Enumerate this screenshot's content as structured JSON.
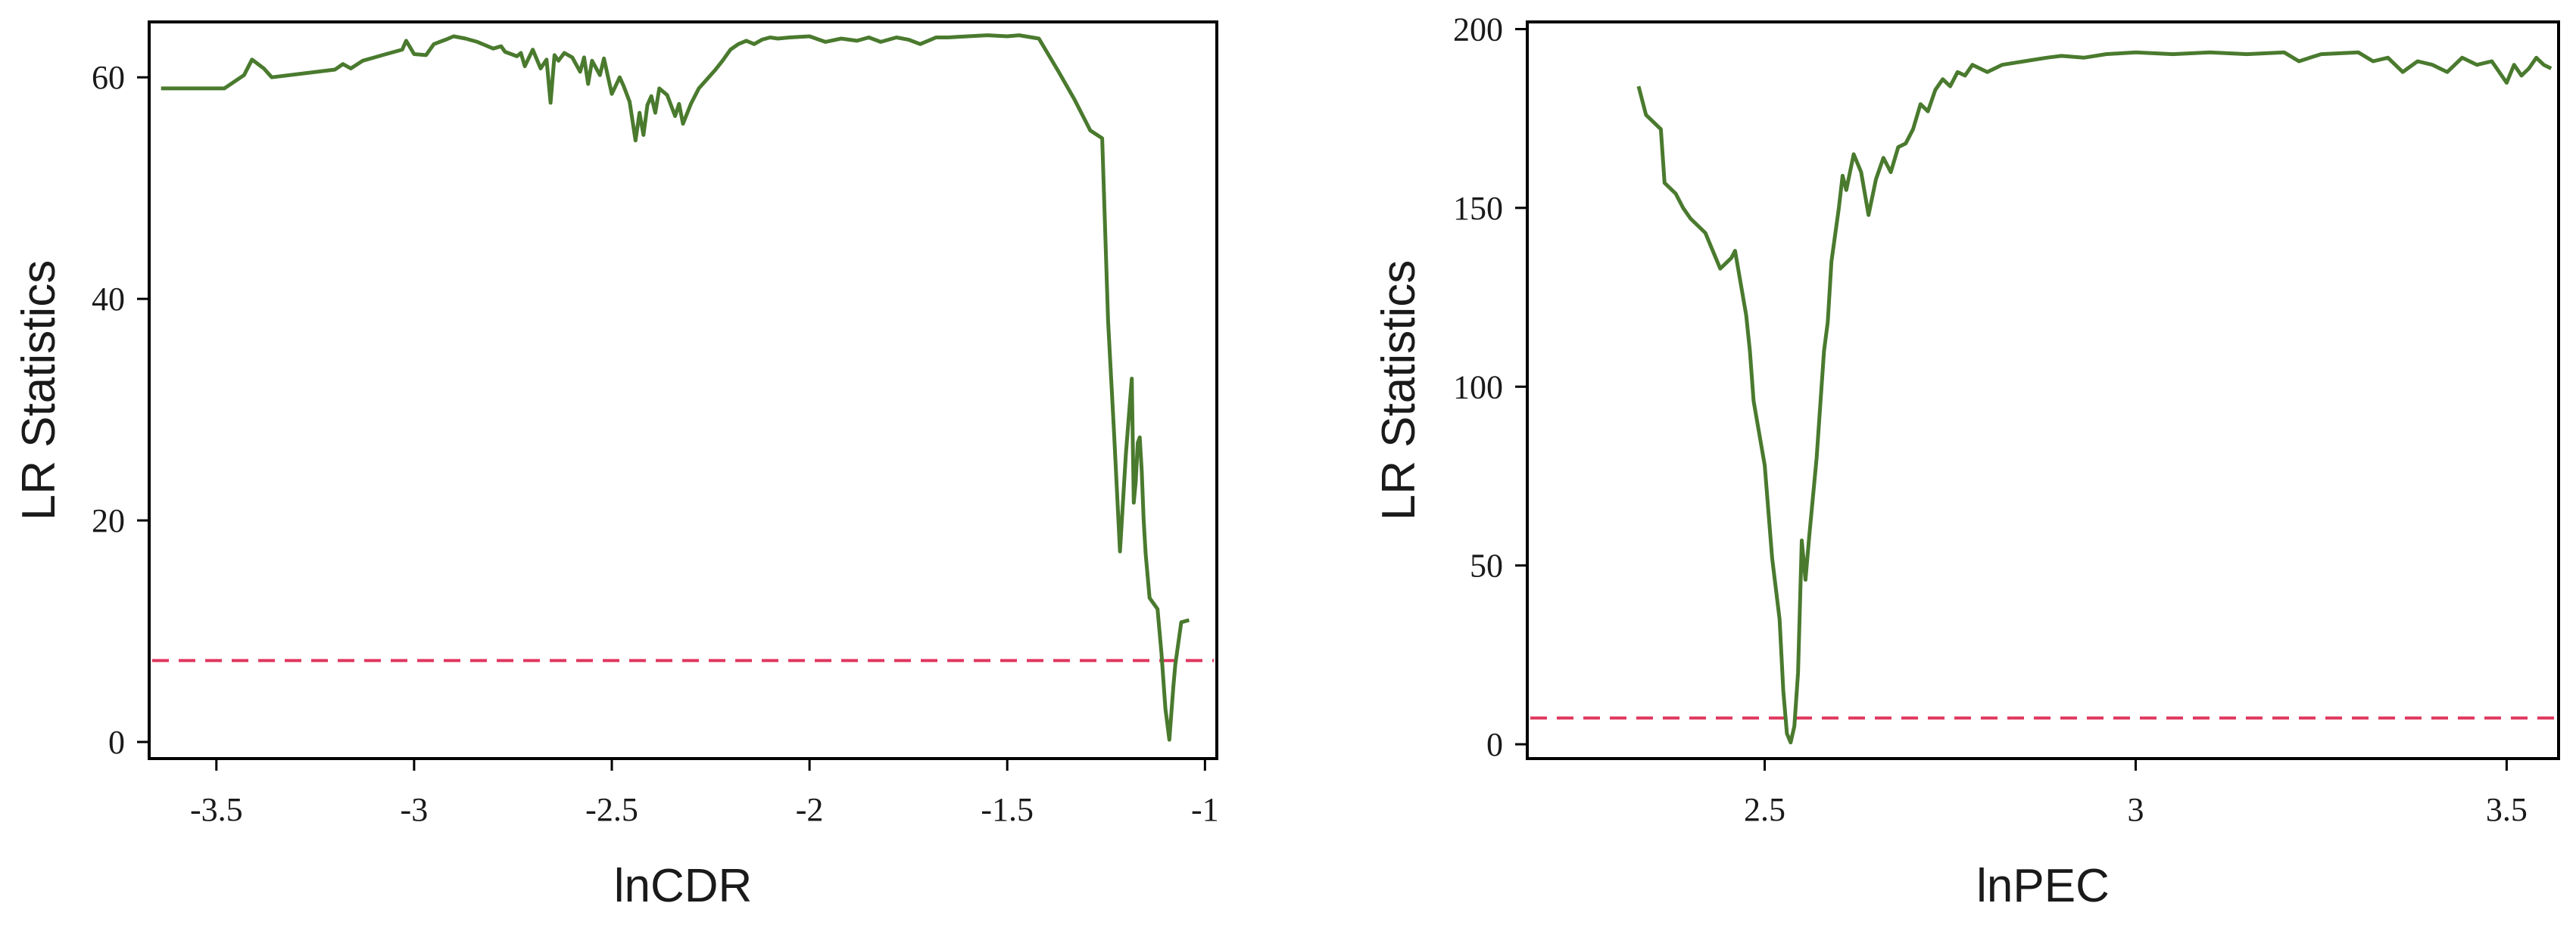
{
  "colors": {
    "line": "#4a7a2e",
    "threshold": "#e0365e",
    "frame": "#000000",
    "text": "#1a1a1a"
  },
  "chart_data": [
    {
      "type": "line",
      "title": "",
      "xlabel": "lnCDR",
      "ylabel": "LR Statistics",
      "xlim": [
        -3.67,
        -0.97
      ],
      "ylim": [
        -1.5,
        65
      ],
      "xticks": [
        -3.5,
        -3,
        -2.5,
        -2,
        -1.5,
        -1
      ],
      "xtick_labels": [
        "-3.5",
        "-3",
        "-2.5",
        "-2",
        "-1.5",
        "-1"
      ],
      "yticks": [
        0,
        20,
        40,
        60
      ],
      "ytick_labels": [
        "0",
        "20",
        "40",
        "60"
      ],
      "grid": false,
      "threshold": 7.35,
      "series": [
        {
          "x": [
            -3.64,
            -3.48,
            -3.43,
            -3.41,
            -3.38,
            -3.36,
            -3.2,
            -3.18,
            -3.16,
            -3.13,
            -3.1,
            -3.08,
            -3.03,
            -3.02,
            -3.0,
            -2.97,
            -2.95,
            -2.92,
            -2.9,
            -2.87,
            -2.84,
            -2.8,
            -2.78,
            -2.77,
            -2.74,
            -2.73,
            -2.72,
            -2.7,
            -2.68,
            -2.665,
            -2.655,
            -2.645,
            -2.635,
            -2.62,
            -2.6,
            -2.58,
            -2.57,
            -2.56,
            -2.55,
            -2.53,
            -2.52,
            -2.5,
            -2.48,
            -2.47,
            -2.455,
            -2.44,
            -2.43,
            -2.42,
            -2.41,
            -2.4,
            -2.39,
            -2.38,
            -2.36,
            -2.34,
            -2.33,
            -2.32,
            -2.3,
            -2.28,
            -2.26,
            -2.24,
            -2.22,
            -2.2,
            -2.18,
            -2.16,
            -2.14,
            -2.12,
            -2.1,
            -2.08,
            -2.05,
            -2.0,
            -1.96,
            -1.92,
            -1.88,
            -1.85,
            -1.82,
            -1.78,
            -1.75,
            -1.72,
            -1.68,
            -1.65,
            -1.6,
            -1.55,
            -1.5,
            -1.47,
            -1.42,
            -1.37,
            -1.33,
            -1.29,
            -1.26,
            -1.245,
            -1.23,
            -1.215,
            -1.2,
            -1.185,
            -1.18,
            -1.175,
            -1.17,
            -1.165,
            -1.16,
            -1.155,
            -1.15,
            -1.14,
            -1.12,
            -1.11,
            -1.1,
            -1.09,
            -1.08,
            -1.075,
            -1.06,
            -1.04
          ],
          "y": [
            59.0,
            59.0,
            60.2,
            61.6,
            60.8,
            60.0,
            60.7,
            61.2,
            60.8,
            61.5,
            61.8,
            62.0,
            62.5,
            63.3,
            62.1,
            62.0,
            63.0,
            63.4,
            63.7,
            63.5,
            63.2,
            62.6,
            62.8,
            62.3,
            61.9,
            62.2,
            61.0,
            62.5,
            60.8,
            61.6,
            57.7,
            62.0,
            61.5,
            62.2,
            61.8,
            60.5,
            61.8,
            59.4,
            61.5,
            60.2,
            61.7,
            58.5,
            60.0,
            59.2,
            57.8,
            54.3,
            56.8,
            54.8,
            57.5,
            58.3,
            56.8,
            59.0,
            58.4,
            56.5,
            57.6,
            55.8,
            57.6,
            59.0,
            59.8,
            60.6,
            61.5,
            62.5,
            63.0,
            63.3,
            63.0,
            63.4,
            63.6,
            63.5,
            63.6,
            63.7,
            63.2,
            63.5,
            63.3,
            63.6,
            63.2,
            63.6,
            63.4,
            63.0,
            63.6,
            63.6,
            63.7,
            63.8,
            63.7,
            63.8,
            63.5,
            60.5,
            58.0,
            55.2,
            54.5,
            38.0,
            28.0,
            17.2,
            26.0,
            32.8,
            21.6,
            23.5,
            27.0,
            27.5,
            24.5,
            20.0,
            17.0,
            13.0,
            12.0,
            8.0,
            3.0,
            0.2,
            5.0,
            7.0,
            10.8,
            11.0
          ]
        }
      ]
    },
    {
      "type": "line",
      "title": "",
      "xlabel": "lnPEC",
      "ylabel": "LR Statistics",
      "xlim": [
        2.18,
        3.57
      ],
      "ylim": [
        -4,
        202
      ],
      "xticks": [
        2.5,
        3,
        3.5
      ],
      "xtick_labels": [
        "2.5",
        "3",
        "3.5"
      ],
      "yticks": [
        0,
        50,
        100,
        150,
        200
      ],
      "ytick_labels": [
        "0",
        "50",
        "100",
        "150",
        "200"
      ],
      "grid": false,
      "threshold": 7.35,
      "series": [
        {
          "x": [
            2.33,
            2.34,
            2.36,
            2.365,
            2.38,
            2.39,
            2.4,
            2.42,
            2.44,
            2.455,
            2.46,
            2.47,
            2.475,
            2.48,
            2.485,
            2.49,
            2.5,
            2.51,
            2.52,
            2.525,
            2.53,
            2.535,
            2.54,
            2.545,
            2.55,
            2.555,
            2.56,
            2.57,
            2.58,
            2.585,
            2.59,
            2.6,
            2.605,
            2.61,
            2.62,
            2.63,
            2.64,
            2.65,
            2.66,
            2.67,
            2.68,
            2.69,
            2.7,
            2.71,
            2.72,
            2.73,
            2.74,
            2.75,
            2.76,
            2.77,
            2.78,
            2.8,
            2.82,
            2.85,
            2.88,
            2.9,
            2.93,
            2.96,
            3.0,
            3.05,
            3.1,
            3.15,
            3.2,
            3.22,
            3.25,
            3.3,
            3.32,
            3.34,
            3.36,
            3.38,
            3.4,
            3.42,
            3.44,
            3.46,
            3.48,
            3.5,
            3.51,
            3.52,
            3.53,
            3.54,
            3.55,
            3.56
          ],
          "y": [
            184.0,
            176.0,
            172.0,
            157.0,
            154.0,
            150.0,
            147.0,
            143.0,
            133.0,
            136.0,
            138.0,
            126.0,
            120.0,
            110.0,
            96.0,
            90.0,
            78.0,
            52.0,
            35.0,
            15.0,
            3.0,
            0.5,
            5.0,
            20.0,
            57.0,
            46.0,
            58.0,
            80.0,
            110.0,
            118.0,
            135.0,
            150.0,
            159.0,
            155.0,
            165.0,
            160.0,
            148.0,
            158.0,
            164.0,
            160.0,
            167.0,
            168.0,
            172.0,
            179.0,
            177.0,
            183.0,
            186.0,
            184.0,
            188.0,
            187.0,
            190.0,
            188.0,
            190.0,
            191.0,
            192.0,
            192.5,
            192.0,
            193.0,
            193.5,
            193.0,
            193.5,
            193.0,
            193.5,
            191.0,
            193.0,
            193.5,
            191.0,
            192.0,
            188.0,
            191.0,
            190.0,
            188.0,
            192.0,
            190.0,
            191.0,
            185.0,
            190.0,
            187.0,
            189.0,
            192.0,
            190.0,
            189.0
          ]
        }
      ]
    }
  ]
}
